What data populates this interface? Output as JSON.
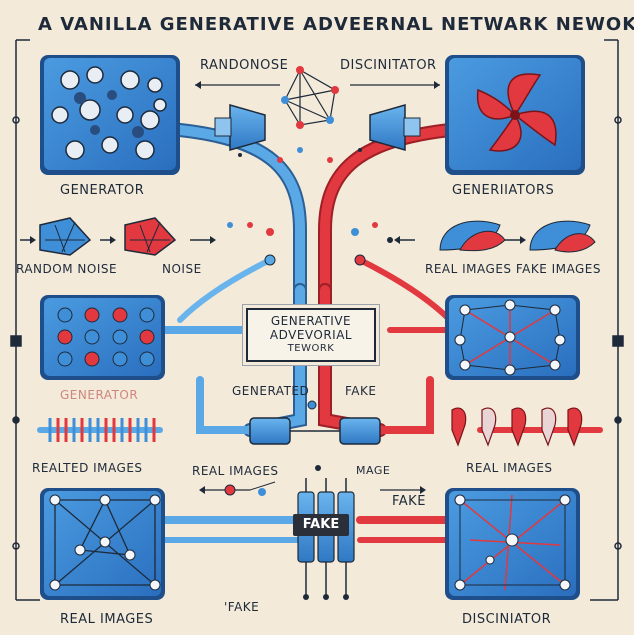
{
  "title": "A VANILLA GENERATIVE ADVEERNAL NETWARK NEWOK.",
  "labels": {
    "randonose": "RANDONOSE",
    "discinitator_top": "DISCINITATOR",
    "generator": "GENERATOR",
    "generiators": "GENERIIATORS",
    "random_noise": "RANDOM NOISE",
    "noise": "NOISE",
    "real_fake_images": "REAL IMAGES FAKE IMAGES",
    "center_line1": "GENERATIVE",
    "center_line2": "ADVEVORIAL",
    "center_line3": "TEWORK",
    "generated": "GENERATED",
    "fake_mid": "FAKE",
    "generator_blur": "GENERATOR",
    "realted_images": "REALTED IMAGES",
    "real_images_mid": "REAL IMAGES",
    "mage": "MAGE",
    "real_images_right": "REAL    IMAGES",
    "fake_tag": "FAKE",
    "fake_right": "FAKE",
    "fake_bottom": "'FAKE",
    "real_images_bottom": "REAL IMAGES",
    "disciniator_bottom": "DISCINIATOR"
  },
  "colors": {
    "background": "#f3ead9",
    "panel_blue": "#3f8fd8",
    "pipe_blue": "#5aa9e6",
    "pipe_red": "#e2383f",
    "ink": "#1e2a3a"
  }
}
